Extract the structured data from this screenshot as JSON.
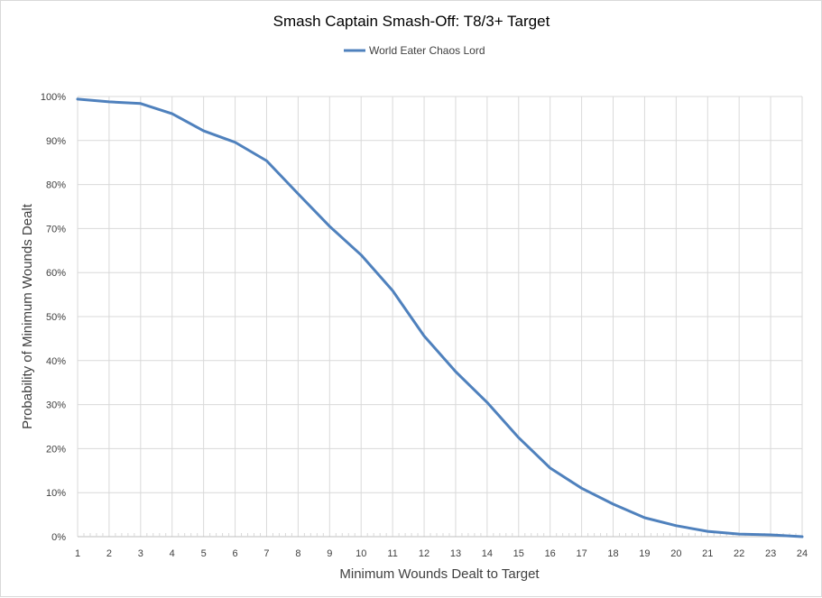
{
  "chart_data": {
    "type": "line",
    "title": "Smash Captain Smash-Off: T8/3+ Target",
    "xlabel": "Minimum Wounds Dealt  to Target",
    "ylabel": "Probability of Minimum Wounds Dealt",
    "legend_position": "top-center",
    "grid": true,
    "x": [
      1,
      2,
      3,
      4,
      5,
      6,
      7,
      8,
      9,
      10,
      11,
      12,
      13,
      14,
      15,
      16,
      17,
      18,
      19,
      20,
      21,
      22,
      23,
      24
    ],
    "xlim": [
      1,
      24
    ],
    "ylim": [
      0,
      100
    ],
    "y_ticks": [
      "0%",
      "10%",
      "20%",
      "30%",
      "40%",
      "50%",
      "60%",
      "70%",
      "80%",
      "90%",
      "100%"
    ],
    "series": [
      {
        "name": "World Eater Chaos Lord",
        "color": "#4f81bd",
        "values": [
          99.4,
          98.8,
          98.4,
          96.1,
          92.2,
          89.6,
          85.4,
          77.9,
          70.5,
          64.0,
          55.9,
          45.6,
          37.5,
          30.5,
          22.5,
          15.6,
          11.0,
          7.4,
          4.3,
          2.5,
          1.2,
          0.6,
          0.4,
          0.0
        ]
      }
    ],
    "colors": {
      "grid": "#d9d9d9",
      "axis": "#bfbfbf",
      "text": "#404040",
      "title": "#000000",
      "line": "#4f81bd"
    }
  }
}
